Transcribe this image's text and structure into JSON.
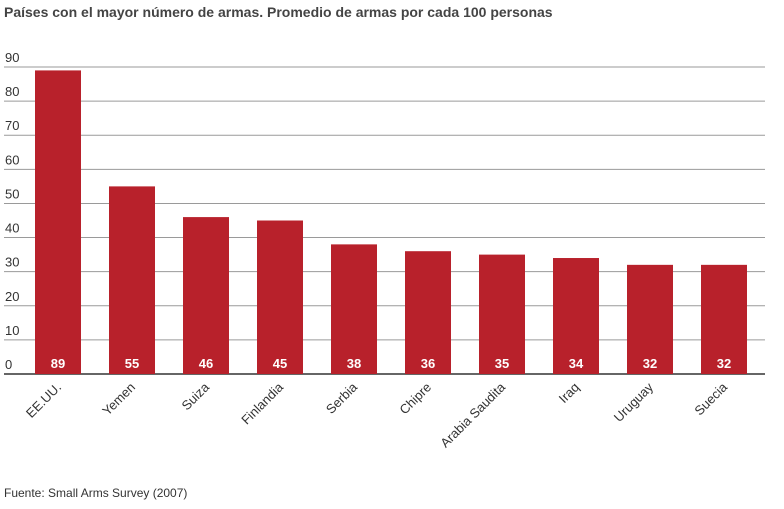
{
  "chart_data": {
    "type": "bar",
    "title": "Países con el mayor número de armas. Promedio de armas por cada 100 personas",
    "xlabel": "",
    "ylabel": "",
    "categories": [
      "EE.UU.",
      "Yemen",
      "Suiza",
      "Finlandia",
      "Serbia",
      "Chipre",
      "Arabia Saudita",
      "Iraq",
      "Uruguay",
      "Suecia"
    ],
    "values": [
      89,
      55,
      46,
      45,
      38,
      36,
      35,
      34,
      32,
      32
    ],
    "ylim": [
      0,
      90
    ],
    "yticks": [
      0,
      10,
      20,
      30,
      40,
      50,
      60,
      70,
      80,
      90
    ],
    "grid": true,
    "legend": "none",
    "bar_color": "#b8212b",
    "data_labels": "inside-bottom"
  },
  "source": "Fuente: Small Arms Survey (2007)"
}
